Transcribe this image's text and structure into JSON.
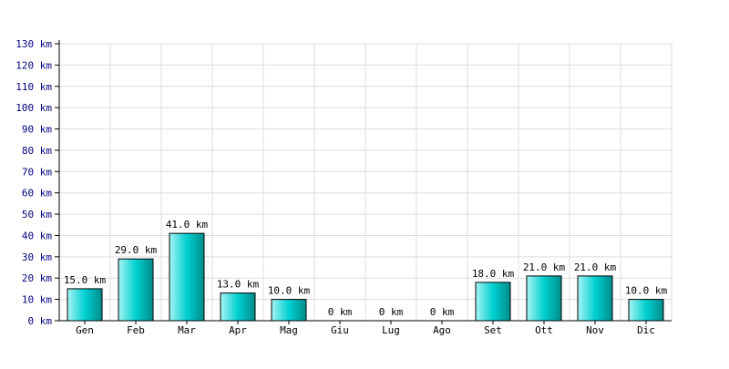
{
  "chart_data": {
    "type": "bar",
    "title": "",
    "xlabel": "",
    "ylabel": "",
    "unit": "km",
    "categories": [
      "Gen",
      "Feb",
      "Mar",
      "Apr",
      "Mag",
      "Giu",
      "Lug",
      "Ago",
      "Set",
      "Ott",
      "Nov",
      "Dic"
    ],
    "values": [
      15.0,
      29.0,
      41.0,
      13.0,
      10.0,
      0,
      0,
      0,
      18.0,
      21.0,
      21.0,
      10.0
    ],
    "value_labels": [
      "15.0 km",
      "29.0 km",
      "41.0 km",
      "13.0 km",
      "10.0 km",
      "0 km",
      "0 km",
      "0 km",
      "18.0 km",
      "21.0 km",
      "21.0 km",
      "10.0 km"
    ],
    "y_ticks": [
      "0 km",
      "10 km",
      "20 km",
      "30 km",
      "40 km",
      "50 km",
      "60 km",
      "70 km",
      "80 km",
      "90 km",
      "100 km",
      "110 km",
      "120 km",
      "130 km"
    ],
    "ylim": [
      0,
      130
    ],
    "grid": true,
    "legend": "none",
    "colors": {
      "bar_light": "#a8f4f4",
      "bar_mid": "#00d0d0",
      "bar_dark": "#008c8c",
      "bar_outline": "#000000",
      "grid": "#dddddd",
      "axis": "#000000",
      "ytick_text": "#000080",
      "xtick_text": "#000000"
    }
  }
}
